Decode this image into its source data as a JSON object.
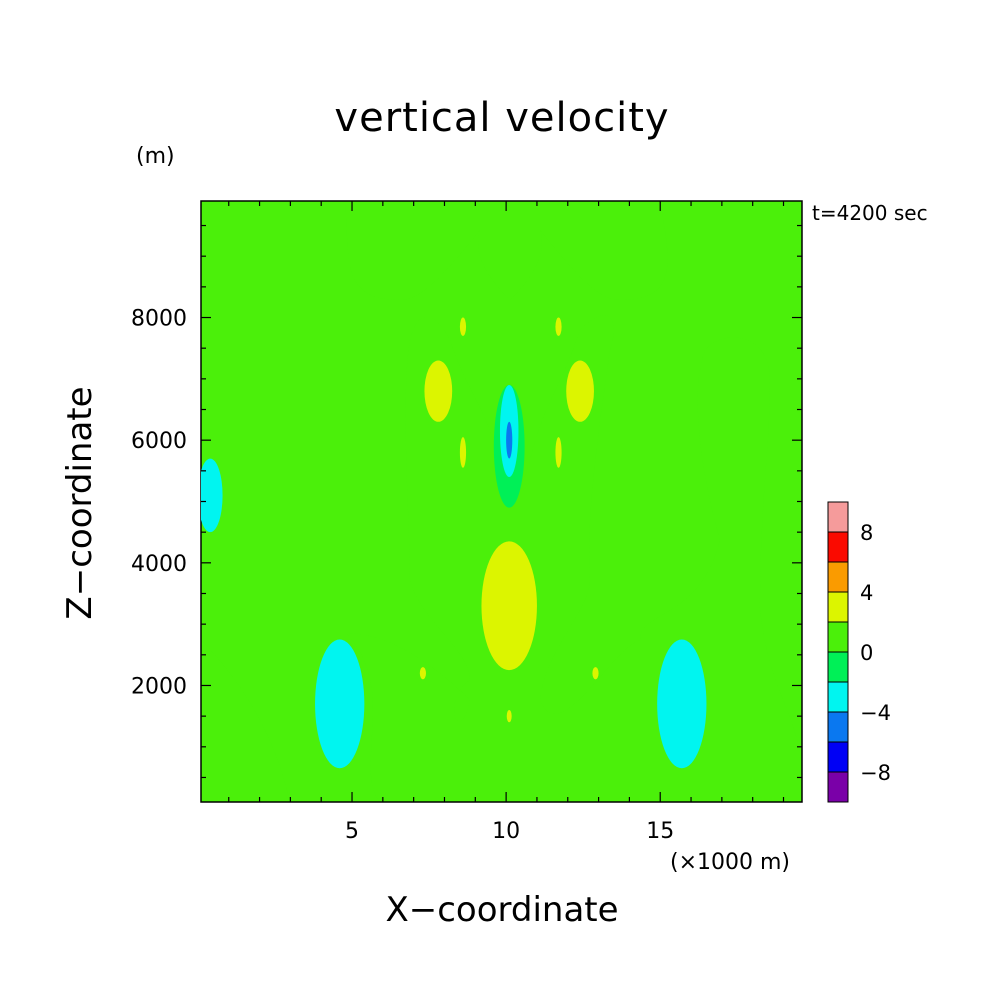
{
  "chart_data": {
    "type": "heatmap",
    "title": "vertical velocity",
    "xlabel": "X−coordinate",
    "ylabel": "Z−coordinate",
    "x_unit": "(×1000 m)",
    "y_unit": "(m)",
    "annotation": "t=4200 sec",
    "xlim": [
      0.1,
      19.6
    ],
    "ylim": [
      100,
      9900
    ],
    "x_ticks": [
      5,
      10,
      15
    ],
    "y_ticks": [
      2000,
      4000,
      6000,
      8000
    ],
    "x_minor_step": 1,
    "y_minor_step": 500,
    "field_background_value": 1,
    "regions": [
      {
        "shape": "ellipse",
        "cx": 10.1,
        "cy": 3300,
        "rx": 0.9,
        "ry": 1050,
        "value": 3
      },
      {
        "shape": "ellipse",
        "cx": 10.1,
        "cy": 5900,
        "rx": 0.5,
        "ry": 1000,
        "value": -1
      },
      {
        "shape": "ellipse",
        "cx": 10.1,
        "cy": 6150,
        "rx": 0.3,
        "ry": 750,
        "value": -3
      },
      {
        "shape": "ellipse",
        "cx": 10.1,
        "cy": 6000,
        "rx": 0.1,
        "ry": 300,
        "value": -5
      },
      {
        "shape": "ellipse",
        "cx": 4.6,
        "cy": 1700,
        "rx": 0.8,
        "ry": 1050,
        "value": -3
      },
      {
        "shape": "ellipse",
        "cx": 15.7,
        "cy": 1700,
        "rx": 0.8,
        "ry": 1050,
        "value": -3
      },
      {
        "shape": "ellipse",
        "cx": 0.4,
        "cy": 5100,
        "rx": 0.4,
        "ry": 600,
        "value": -3
      },
      {
        "shape": "ellipse",
        "cx": 7.8,
        "cy": 6800,
        "rx": 0.45,
        "ry": 500,
        "value": 3
      },
      {
        "shape": "ellipse",
        "cx": 12.4,
        "cy": 6800,
        "rx": 0.45,
        "ry": 500,
        "value": 3
      },
      {
        "shape": "ellipse",
        "cx": 8.6,
        "cy": 5800,
        "rx": 0.1,
        "ry": 250,
        "value": 3
      },
      {
        "shape": "ellipse",
        "cx": 11.7,
        "cy": 5800,
        "rx": 0.1,
        "ry": 250,
        "value": 3
      },
      {
        "shape": "ellipse",
        "cx": 8.6,
        "cy": 7850,
        "rx": 0.1,
        "ry": 150,
        "value": 3
      },
      {
        "shape": "ellipse",
        "cx": 11.7,
        "cy": 7850,
        "rx": 0.1,
        "ry": 150,
        "value": 3
      },
      {
        "shape": "ellipse",
        "cx": 7.3,
        "cy": 2200,
        "rx": 0.1,
        "ry": 100,
        "value": 3
      },
      {
        "shape": "ellipse",
        "cx": 12.9,
        "cy": 2200,
        "rx": 0.1,
        "ry": 100,
        "value": 3
      },
      {
        "shape": "ellipse",
        "cx": 10.1,
        "cy": 1500,
        "rx": 0.08,
        "ry": 100,
        "value": 3
      }
    ],
    "colorbar": {
      "levels": [
        -10,
        -8,
        -6,
        -4,
        -2,
        0,
        2,
        4,
        6,
        8,
        10
      ],
      "colors": [
        "#7a00a8",
        "#0000f5",
        "#0a78f0",
        "#00f5f0",
        "#00f057",
        "#4bf00a",
        "#dcf500",
        "#fa9b00",
        "#fa0a00",
        "#f59b9b"
      ],
      "tick_labels": [
        "−8",
        "−4",
        "0",
        "4",
        "8"
      ],
      "tick_values": [
        -8,
        -4,
        0,
        4,
        8
      ]
    }
  }
}
